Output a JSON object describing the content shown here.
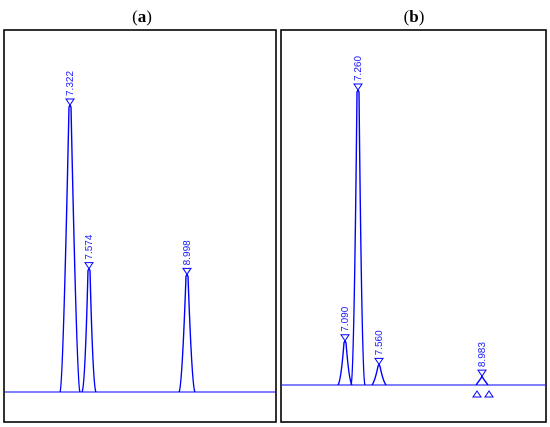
{
  "chart_data": [
    {
      "type": "line",
      "panel_label": "a",
      "color": "#0000ff",
      "peaks": [
        {
          "label": "7.322",
          "height": 1.0
        },
        {
          "label": "7.574",
          "height": 0.43
        },
        {
          "label": "8.998",
          "height": 0.41
        }
      ]
    },
    {
      "type": "line",
      "panel_label": "b",
      "color": "#0000ff",
      "peaks": [
        {
          "label": "7.090",
          "height": 0.15
        },
        {
          "label": "7.260",
          "height": 1.0
        },
        {
          "label": "7.560",
          "height": 0.07
        },
        {
          "label": "8.983",
          "height": 0.03
        }
      ]
    }
  ]
}
